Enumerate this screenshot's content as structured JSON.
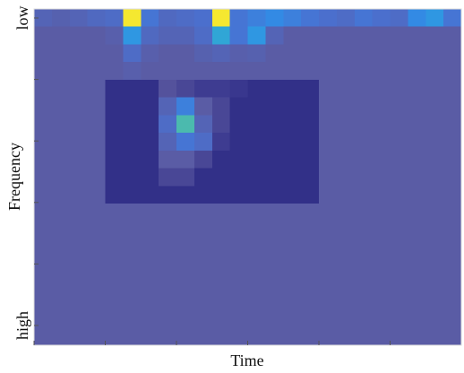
{
  "chart_data": {
    "type": "heatmap",
    "xlabel": "Time",
    "ylabel": "Frequency",
    "ylim": [
      0,
      1
    ],
    "yticks": [
      {
        "value": 0,
        "label": "low"
      },
      {
        "value": 1,
        "label": "high"
      }
    ],
    "clim": [
      0,
      1
    ],
    "colormap": [
      "#2c2a84",
      "#3c3a90",
      "#5c5aa0",
      "#4a70d0",
      "#2f8fe8",
      "#30b8c8",
      "#9ac060",
      "#f5e830"
    ],
    "values": [
      [
        0.35,
        0.33,
        0.35,
        0.38,
        0.4,
        1,
        0.45,
        0.38,
        0.4,
        0.42,
        1,
        0.45,
        0.5,
        0.55,
        0.5,
        0.45,
        0.42,
        0.4,
        0.45,
        0.42,
        0.4,
        0.55,
        0.6,
        0.45
      ],
      [
        0.3,
        0.3,
        0.3,
        0.3,
        0.32,
        0.6,
        0.38,
        0.35,
        0.35,
        0.4,
        0.65,
        0.45,
        0.6,
        0.35,
        0.3,
        0.3,
        0.3,
        0.3,
        0.3,
        0.3,
        0.3,
        0.3,
        0.3,
        0.3
      ],
      [
        0.3,
        0.3,
        0.3,
        0.3,
        0.3,
        0.4,
        0.32,
        0.3,
        0.3,
        0.33,
        0.35,
        0.32,
        0.33,
        0.3,
        0.3,
        0.3,
        0.3,
        0.3,
        0.3,
        0.3,
        0.3,
        0.3,
        0.3,
        0.3
      ],
      [
        0.3,
        0.3,
        0.3,
        0.3,
        0.3,
        0.32,
        0.3,
        0.3,
        0.3,
        0.3,
        0.3,
        0.3,
        0.3,
        0.3,
        0.3,
        0.3,
        0.3,
        0.3,
        0.3,
        0.3,
        0.3,
        0.3,
        0.3,
        0.3
      ],
      [
        0.3,
        0.3,
        0.3,
        0.3,
        0.05,
        0.05,
        0.05,
        0.25,
        0.2,
        0.15,
        0.15,
        0.12,
        0.05,
        0.05,
        0.05,
        0.05,
        0.3,
        0.3,
        0.3,
        0.3,
        0.3,
        0.3,
        0.3,
        0.3
      ],
      [
        0.3,
        0.3,
        0.3,
        0.3,
        0.05,
        0.05,
        0.05,
        0.35,
        0.5,
        0.3,
        0.2,
        0.05,
        0.05,
        0.05,
        0.05,
        0.05,
        0.3,
        0.3,
        0.3,
        0.3,
        0.3,
        0.3,
        0.3,
        0.3
      ],
      [
        0.3,
        0.3,
        0.3,
        0.3,
        0.05,
        0.05,
        0.05,
        0.4,
        0.75,
        0.35,
        0.2,
        0.05,
        0.05,
        0.05,
        0.05,
        0.05,
        0.3,
        0.3,
        0.3,
        0.3,
        0.3,
        0.3,
        0.3,
        0.3
      ],
      [
        0.3,
        0.3,
        0.3,
        0.3,
        0.05,
        0.05,
        0.05,
        0.35,
        0.45,
        0.4,
        0.15,
        0.05,
        0.05,
        0.05,
        0.05,
        0.05,
        0.3,
        0.3,
        0.3,
        0.3,
        0.3,
        0.3,
        0.3,
        0.3
      ],
      [
        0.3,
        0.3,
        0.3,
        0.3,
        0.05,
        0.05,
        0.05,
        0.3,
        0.3,
        0.2,
        0.05,
        0.05,
        0.05,
        0.05,
        0.05,
        0.05,
        0.3,
        0.3,
        0.3,
        0.3,
        0.3,
        0.3,
        0.3,
        0.3
      ],
      [
        0.3,
        0.3,
        0.3,
        0.3,
        0.05,
        0.05,
        0.05,
        0.2,
        0.2,
        0.05,
        0.05,
        0.05,
        0.05,
        0.05,
        0.05,
        0.05,
        0.3,
        0.3,
        0.3,
        0.3,
        0.3,
        0.3,
        0.3,
        0.3
      ],
      [
        0.3,
        0.3,
        0.3,
        0.3,
        0.05,
        0.05,
        0.05,
        0.05,
        0.05,
        0.05,
        0.05,
        0.05,
        0.05,
        0.05,
        0.05,
        0.05,
        0.3,
        0.3,
        0.3,
        0.3,
        0.3,
        0.3,
        0.3,
        0.3
      ],
      [
        0.3,
        0.3,
        0.3,
        0.3,
        0.3,
        0.3,
        0.3,
        0.3,
        0.3,
        0.3,
        0.3,
        0.3,
        0.3,
        0.3,
        0.3,
        0.3,
        0.3,
        0.3,
        0.3,
        0.3,
        0.3,
        0.3,
        0.3,
        0.3
      ],
      [
        0.3,
        0.3,
        0.3,
        0.3,
        0.3,
        0.3,
        0.3,
        0.3,
        0.3,
        0.3,
        0.3,
        0.3,
        0.3,
        0.3,
        0.3,
        0.3,
        0.3,
        0.3,
        0.3,
        0.3,
        0.3,
        0.3,
        0.3,
        0.3
      ],
      [
        0.3,
        0.3,
        0.3,
        0.3,
        0.3,
        0.3,
        0.3,
        0.3,
        0.3,
        0.3,
        0.3,
        0.3,
        0.3,
        0.3,
        0.3,
        0.3,
        0.3,
        0.3,
        0.3,
        0.3,
        0.3,
        0.3,
        0.3,
        0.3
      ],
      [
        0.3,
        0.3,
        0.3,
        0.3,
        0.3,
        0.3,
        0.3,
        0.3,
        0.3,
        0.3,
        0.3,
        0.3,
        0.3,
        0.3,
        0.3,
        0.3,
        0.3,
        0.3,
        0.3,
        0.3,
        0.3,
        0.3,
        0.3,
        0.3
      ],
      [
        0.3,
        0.3,
        0.3,
        0.3,
        0.3,
        0.3,
        0.3,
        0.3,
        0.3,
        0.3,
        0.3,
        0.3,
        0.3,
        0.3,
        0.3,
        0.3,
        0.3,
        0.3,
        0.3,
        0.3,
        0.3,
        0.3,
        0.3,
        0.3
      ],
      [
        0.3,
        0.3,
        0.3,
        0.3,
        0.3,
        0.3,
        0.3,
        0.3,
        0.3,
        0.3,
        0.3,
        0.3,
        0.3,
        0.3,
        0.3,
        0.3,
        0.3,
        0.3,
        0.3,
        0.3,
        0.3,
        0.3,
        0.3,
        0.3
      ],
      [
        0.3,
        0.3,
        0.3,
        0.3,
        0.3,
        0.3,
        0.3,
        0.3,
        0.3,
        0.3,
        0.3,
        0.3,
        0.3,
        0.3,
        0.3,
        0.3,
        0.3,
        0.3,
        0.3,
        0.3,
        0.3,
        0.3,
        0.3,
        0.3
      ],
      [
        0.3,
        0.3,
        0.3,
        0.3,
        0.3,
        0.3,
        0.3,
        0.3,
        0.3,
        0.3,
        0.3,
        0.3,
        0.3,
        0.3,
        0.3,
        0.3,
        0.3,
        0.3,
        0.3,
        0.3,
        0.3,
        0.3,
        0.3,
        0.3
      ]
    ]
  }
}
